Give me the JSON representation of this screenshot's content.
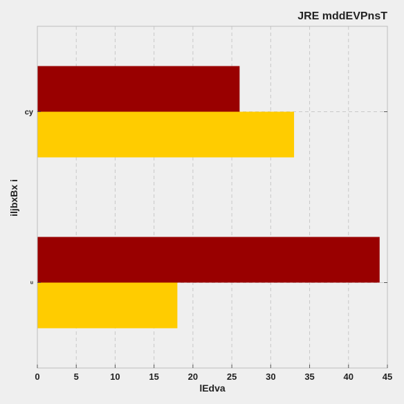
{
  "chart_data": {
    "type": "bar",
    "orientation": "horizontal",
    "title": "JRE mddEVPnsT",
    "xlabel": "lEdva",
    "ylabel": "iljbxBx i",
    "categories": [
      "u",
      "cy"
    ],
    "series": [
      {
        "values": [
          44,
          26
        ],
        "color": "#990000"
      },
      {
        "values": [
          18,
          33
        ],
        "color": "#ffcc00"
      }
    ],
    "xlim": [
      0,
      45
    ],
    "xticks": [
      0,
      5,
      10,
      15,
      20,
      25,
      30,
      35,
      40,
      45
    ],
    "grid": true
  },
  "colors": {
    "background": "#efefef",
    "grid": "#c8c8c8",
    "frame": "#bcbcbc"
  }
}
